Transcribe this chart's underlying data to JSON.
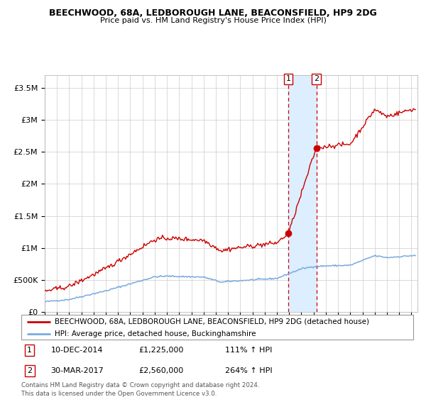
{
  "title1": "BEECHWOOD, 68A, LEDBOROUGH LANE, BEACONSFIELD, HP9 2DG",
  "title2": "Price paid vs. HM Land Registry's House Price Index (HPI)",
  "sale1_date": "10-DEC-2014",
  "sale1_price": 1225000,
  "sale1_label": "111% ↑ HPI",
  "sale1_year": 2014.92,
  "sale2_date": "30-MAR-2017",
  "sale2_price": 2560000,
  "sale2_label": "264% ↑ HPI",
  "sale2_year": 2017.24,
  "legend1": "BEECHWOOD, 68A, LEDBOROUGH LANE, BEACONSFIELD, HP9 2DG (detached house)",
  "legend2": "HPI: Average price, detached house, Buckinghamshire",
  "footnote": "Contains HM Land Registry data © Crown copyright and database right 2024.\nThis data is licensed under the Open Government Licence v3.0.",
  "property_color": "#cc0000",
  "hpi_color": "#7aaadd",
  "highlight_color": "#ddeeff",
  "grid_color": "#cccccc",
  "ylim": [
    0,
    3700000
  ],
  "xlim_start": 1995.0,
  "xlim_end": 2025.5,
  "yticks": [
    0,
    500000,
    1000000,
    1500000,
    2000000,
    2500000,
    3000000,
    3500000
  ],
  "ylabels": [
    "£0",
    "£500K",
    "£1M",
    "£1.5M",
    "£2M",
    "£2.5M",
    "£3M",
    "£3.5M"
  ]
}
